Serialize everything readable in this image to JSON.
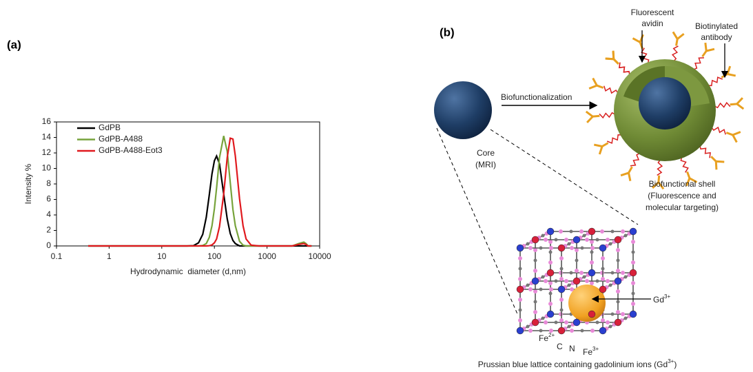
{
  "chart_data": {
    "type": "line",
    "panel_label": "(a)",
    "xlabel": "Hydrodynamic  diameter (d,nm)",
    "ylabel": "Intensity %",
    "x": [
      0.4,
      10,
      30,
      40,
      50,
      60,
      70,
      80,
      90,
      100,
      110,
      125,
      150,
      175,
      200,
      225,
      250,
      300,
      350,
      400,
      500,
      700,
      1000,
      3000,
      4000,
      5000,
      5500,
      6000,
      7000
    ],
    "series": [
      {
        "name": "GdPB",
        "color": "#000000",
        "values": [
          0,
          0,
          0,
          0.04,
          0.4,
          1.5,
          3.7,
          6.6,
          9.3,
          11.0,
          11.6,
          10.6,
          6.7,
          3.5,
          1.6,
          0.7,
          0.3,
          0,
          0,
          0,
          0,
          0,
          0,
          0,
          0,
          0,
          0,
          0,
          0
        ]
      },
      {
        "name": "GdPB-A488",
        "color": "#77a33b",
        "values": [
          0,
          0,
          0,
          0,
          0,
          0.06,
          0.3,
          1.1,
          2.6,
          4.8,
          7.5,
          11.4,
          14.2,
          12.2,
          8.2,
          4.7,
          2.6,
          0.6,
          0.1,
          0,
          0,
          0,
          0,
          0,
          0.3,
          0.5,
          0.3,
          0,
          0
        ]
      },
      {
        "name": "GdPB-A488-Eot3",
        "color": "#e0191e",
        "values": [
          0,
          0,
          0,
          0,
          0,
          0,
          0,
          0.03,
          0.13,
          0.4,
          0.9,
          2.5,
          6.7,
          11.4,
          13.9,
          13.8,
          11.6,
          6.1,
          2.6,
          0.9,
          0.1,
          0,
          0,
          0,
          0.2,
          0.3,
          0.2,
          0,
          0
        ]
      }
    ],
    "xscale": "log",
    "xlim": [
      0.1,
      10000
    ],
    "xticks": [
      0.1,
      1,
      10,
      100,
      1000,
      10000
    ],
    "ylim": [
      0,
      16
    ],
    "yticks": [
      0,
      2,
      4,
      6,
      8,
      10,
      12,
      14,
      16
    ],
    "grid": false,
    "legend": "upper left"
  },
  "diagram": {
    "panel_label": "(b)",
    "fluorescent_avidin": [
      "Fluorescent",
      "avidin"
    ],
    "biotinylated_antibody": [
      "Biotinylated",
      "antibody"
    ],
    "arrow_label": "Biofunctionalization",
    "core": [
      "Core",
      "(MRI)"
    ],
    "shell": [
      "Biofunctional shell",
      "(Fluorescence and",
      "molecular targeting)"
    ],
    "gd": {
      "base": "Gd",
      "sup": "3+"
    },
    "fe2": {
      "base": "Fe",
      "sup": "2+"
    },
    "c": "C",
    "n": "N",
    "fe3": {
      "base": "Fe",
      "sup": "3+"
    },
    "caption": {
      "text": "Prussian blue lattice containing gadolinium ions (Gd",
      "sup": "3+",
      "end": ")"
    }
  }
}
